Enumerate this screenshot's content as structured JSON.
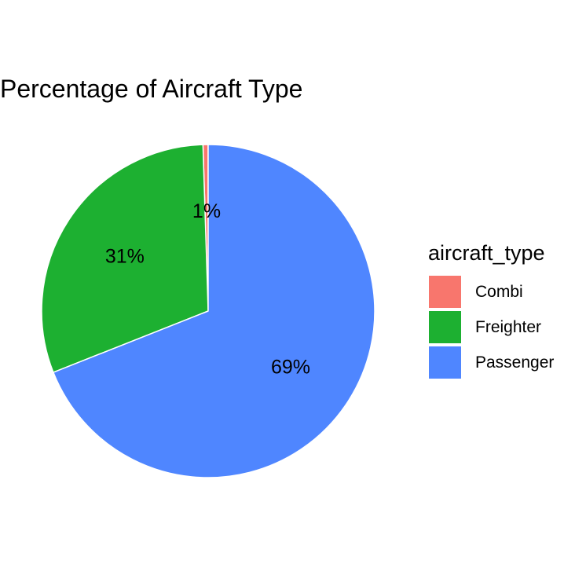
{
  "chart_data": {
    "type": "pie",
    "title": "Percentage of Aircraft Type",
    "legend_title": "aircraft_type",
    "legend_position": "right",
    "categories": [
      "Combi",
      "Freighter",
      "Passenger"
    ],
    "values": [
      0.5,
      30.5,
      69.0
    ],
    "labels": [
      "1%",
      "31%",
      "69%"
    ],
    "colors": [
      "#F8766D",
      "#1DB031",
      "#4F86FF"
    ],
    "start_angle": "12 o'clock",
    "direction": "counterclockwise"
  }
}
